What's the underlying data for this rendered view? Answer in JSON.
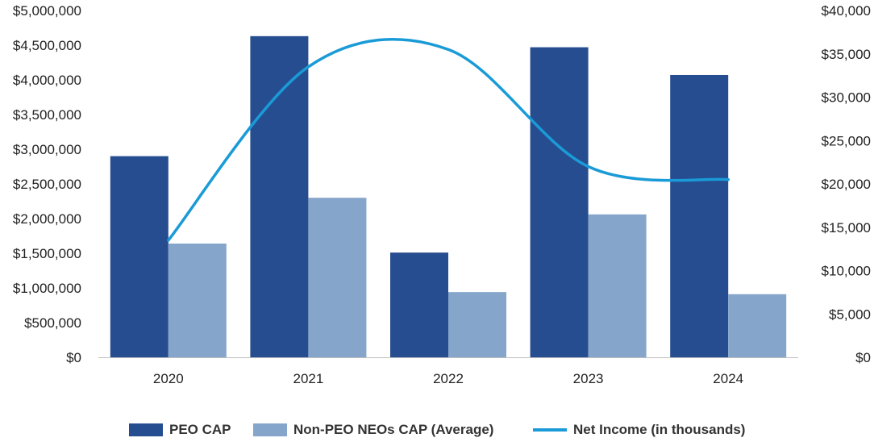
{
  "chart_data": {
    "type": "bar",
    "title": "",
    "categories": [
      "2020",
      "2021",
      "2022",
      "2023",
      "2024"
    ],
    "series": [
      {
        "name": "PEO CAP",
        "kind": "bar",
        "axis": "left",
        "color": "#264d8f",
        "values": [
          2900000,
          4630000,
          1510000,
          4470000,
          4070000
        ]
      },
      {
        "name": "Non-PEO NEOs CAP (Average)",
        "kind": "bar",
        "axis": "left",
        "color": "#85a5ca",
        "values": [
          1640000,
          2300000,
          940000,
          2060000,
          910000
        ]
      },
      {
        "name": "Net Income (in thousands)",
        "kind": "line",
        "axis": "right",
        "color": "#1a9bd7",
        "values": [
          13500,
          33500,
          35500,
          22000,
          20500
        ]
      }
    ],
    "y_left": {
      "min": 0,
      "max": 5000000,
      "step": 500000,
      "tick_labels": [
        "$0",
        "$500,000",
        "$1,000,000",
        "$1,500,000",
        "$2,000,000",
        "$2,500,000",
        "$3,000,000",
        "$3,500,000",
        "$4,000,000",
        "$4,500,000",
        "$5,000,000"
      ]
    },
    "y_right": {
      "min": 0,
      "max": 40000,
      "step": 5000,
      "tick_labels": [
        "$0",
        "$5,000",
        "$10,000",
        "$15,000",
        "$20,000",
        "$25,000",
        "$30,000",
        "$35,000",
        "$40,000"
      ]
    },
    "grid": false,
    "legend_position": "bottom"
  }
}
